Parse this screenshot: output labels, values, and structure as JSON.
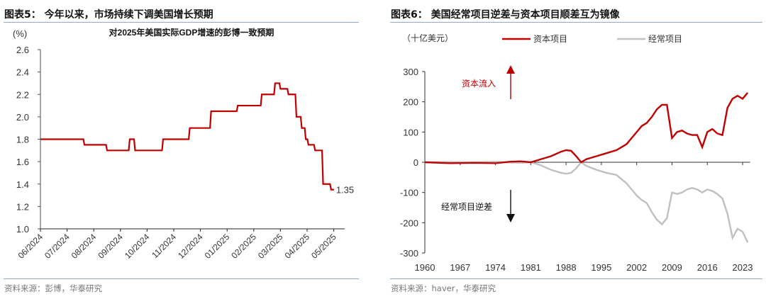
{
  "left": {
    "title": "图表5：  今年以来，市场持续下调美国增长预期",
    "unit": "(%)",
    "subtitle": "对2025年美国实际GDP增速的彭博一致预期",
    "source": "资料来源：彭博，华泰研究",
    "end_label": "1.35"
  },
  "right": {
    "title": "图表6：  美国经常项目逆差与资本项目顺差互为镜像",
    "unit": "（十亿美元）",
    "legend": {
      "capital": "资本项目",
      "current": "经常项目"
    },
    "annotation_up": "资本流入",
    "annotation_down": "经常项目逆差",
    "source": "资料来源：haver，华泰研究"
  },
  "chart_data": [
    {
      "type": "line",
      "title": "对2025年美国实际GDP增速的彭博一致预期",
      "xlabel": "",
      "ylabel": "(%)",
      "ylim": [
        1.0,
        2.6
      ],
      "yticks": [
        1.0,
        1.2,
        1.4,
        1.6,
        1.8,
        2.0,
        2.2,
        2.4,
        2.6
      ],
      "categories": [
        "06/2024",
        "07/2024",
        "08/2024",
        "09/2024",
        "10/2024",
        "11/2024",
        "12/2024",
        "01/2025",
        "02/2025",
        "03/2025",
        "04/2025",
        "05/2025"
      ],
      "series": [
        {
          "name": "2025年美国实际GDP增速一致预期",
          "color": "#c00000",
          "x": [
            0,
            0.9,
            1.65,
            2.5,
            3.1,
            3.35,
            3.55,
            3.75,
            4.3,
            4.6,
            5.3,
            5.6,
            5.9,
            6.4,
            7.4,
            8.1,
            8.3,
            8.5,
            8.8,
            9.0,
            9.2,
            9.3,
            9.5,
            9.6,
            9.8,
            9.95,
            10.05,
            10.3,
            10.6,
            10.9
          ],
          "values": [
            1.8,
            1.8,
            1.75,
            1.7,
            1.7,
            1.8,
            1.7,
            1.7,
            1.7,
            1.8,
            1.8,
            1.9,
            1.9,
            2.05,
            2.1,
            2.1,
            2.2,
            2.2,
            2.3,
            2.25,
            2.25,
            2.2,
            2.2,
            2.0,
            1.9,
            1.8,
            1.75,
            1.7,
            1.4,
            1.35
          ]
        }
      ],
      "annotations": [
        {
          "text": "1.35",
          "x": "end"
        }
      ]
    },
    {
      "type": "line",
      "title": "美国经常项目逆差与资本项目顺差互为镜像",
      "ylabel": "十亿美元",
      "ylim": [
        -300,
        300
      ],
      "yticks": [
        -300,
        -200,
        -100,
        0,
        100,
        200,
        300
      ],
      "xticks": [
        1960,
        1967,
        1974,
        1981,
        1988,
        1995,
        2002,
        2009,
        2016,
        2023
      ],
      "legend_position": "top",
      "series": [
        {
          "name": "资本项目",
          "color": "#c00000",
          "x": [
            1960,
            1965,
            1970,
            1974,
            1977,
            1979,
            1981,
            1983,
            1985,
            1987,
            1988,
            1989,
            1990,
            1991,
            1992,
            1994,
            1996,
            1998,
            2000,
            2001,
            2002,
            2003,
            2004,
            2005,
            2006,
            2007,
            2008,
            2009,
            2010,
            2011,
            2012,
            2013,
            2014,
            2015,
            2016,
            2017,
            2018,
            2019,
            2020,
            2021,
            2022,
            2023,
            2024
          ],
          "values": [
            0,
            -3,
            -2,
            -3,
            2,
            3,
            0,
            10,
            20,
            35,
            40,
            38,
            20,
            0,
            10,
            20,
            30,
            40,
            60,
            80,
            100,
            120,
            130,
            150,
            175,
            190,
            190,
            80,
            100,
            105,
            95,
            90,
            90,
            50,
            100,
            110,
            95,
            90,
            180,
            210,
            220,
            210,
            230
          ]
        },
        {
          "name": "经常项目",
          "color": "#c0c0c0",
          "x": [
            1960,
            1965,
            1970,
            1974,
            1977,
            1979,
            1981,
            1983,
            1985,
            1987,
            1988,
            1989,
            1990,
            1991,
            1992,
            1994,
            1996,
            1998,
            2000,
            2001,
            2002,
            2003,
            2004,
            2005,
            2006,
            2007,
            2008,
            2009,
            2010,
            2011,
            2012,
            2013,
            2014,
            2015,
            2016,
            2017,
            2018,
            2019,
            2020,
            2021,
            2022,
            2023,
            2024
          ],
          "values": [
            0,
            1,
            0,
            2,
            -1,
            -2,
            0,
            -10,
            -25,
            -35,
            -38,
            -35,
            -20,
            0,
            -12,
            -25,
            -35,
            -42,
            -70,
            -90,
            -110,
            -125,
            -135,
            -165,
            -190,
            -205,
            -185,
            -100,
            -105,
            -100,
            -90,
            -85,
            -90,
            -100,
            -90,
            -95,
            -105,
            -120,
            -170,
            -250,
            -220,
            -230,
            -265
          ]
        }
      ]
    }
  ]
}
